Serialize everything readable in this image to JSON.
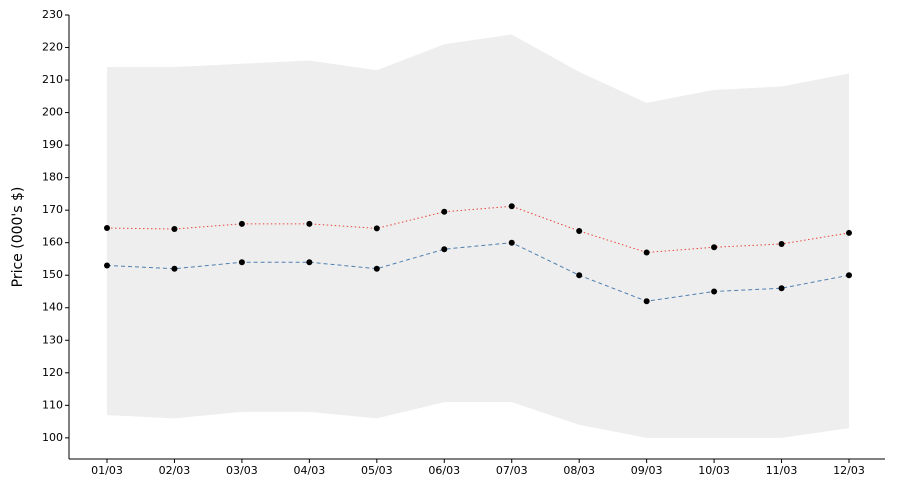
{
  "chart_data": {
    "type": "line",
    "y_label": "Price (000's $)",
    "categories": [
      "01/03",
      "02/03",
      "03/03",
      "04/03",
      "05/03",
      "06/03",
      "07/03",
      "08/03",
      "09/03",
      "10/03",
      "11/03",
      "12/03"
    ],
    "band": {
      "color": "#eeeeee",
      "upper": [
        214,
        214,
        215,
        216,
        213,
        221,
        224,
        212.5,
        203,
        207,
        208,
        212
      ],
      "lower": [
        107,
        106,
        108,
        108,
        106,
        111,
        111,
        104,
        100,
        100,
        100,
        103
      ]
    },
    "series": [
      {
        "color": "#e8473a",
        "dash": "1.5,2.5",
        "values": [
          164.5,
          164.2,
          165.8,
          165.8,
          164.4,
          169.5,
          171.2,
          163.6,
          157,
          158.6,
          159.6,
          163
        ]
      },
      {
        "color": "#4f7fb0",
        "dash": "4,3",
        "values": [
          153,
          152,
          154,
          154,
          152,
          158,
          160,
          150,
          142,
          145,
          146,
          150
        ]
      }
    ],
    "marker_color": "#000000",
    "ylim": [
      93.5,
      230
    ],
    "yticks": [
      100,
      110,
      120,
      130,
      140,
      150,
      160,
      170,
      180,
      190,
      200,
      210,
      220,
      230
    ],
    "grid": false
  }
}
